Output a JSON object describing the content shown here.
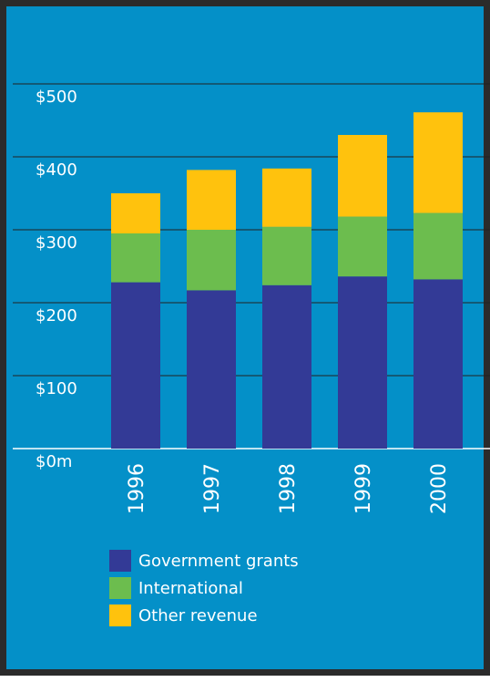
{
  "chart_data": {
    "type": "bar",
    "stacked": true,
    "categories": [
      "1996",
      "1997",
      "1998",
      "1999",
      "2000"
    ],
    "series": [
      {
        "name": "Government grants",
        "color": "#333a96",
        "values": [
          228,
          217,
          224,
          236,
          232
        ]
      },
      {
        "name": "International",
        "color": "#6cbd4e",
        "values": [
          67,
          83,
          80,
          82,
          91
        ]
      },
      {
        "name": "Other revenue",
        "color": "#ffc20d",
        "values": [
          55,
          82,
          80,
          112,
          138
        ]
      }
    ],
    "y_ticks": [
      0,
      100,
      200,
      300,
      400,
      500
    ],
    "y_tick_labels": [
      "$0m",
      "$100",
      "$200",
      "$300",
      "$400",
      "$500"
    ],
    "ylim": [
      0,
      500
    ],
    "grid": true,
    "legend_position": "bottom-left",
    "colors": {
      "background": "#0490c8",
      "border": "#2b2b2b",
      "gridline": "#222222",
      "baseline": "#ffffff"
    }
  }
}
